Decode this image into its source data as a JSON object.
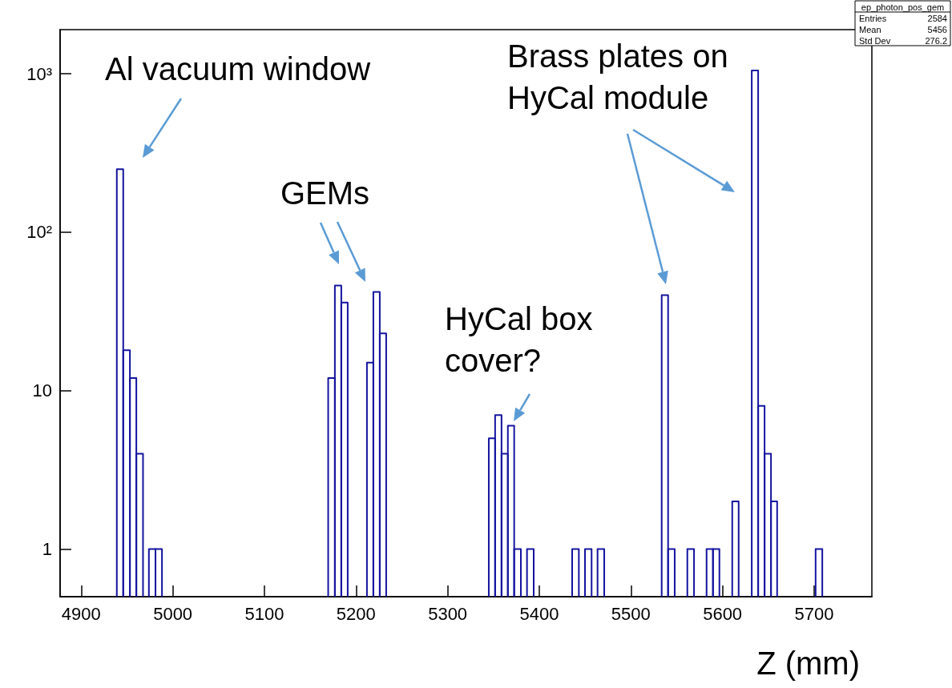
{
  "chart_data": {
    "type": "histogram",
    "xlabel": "Z (mm)",
    "annotations": [
      "Al vacuum window",
      "GEMs",
      "HyCal box cover?",
      "Brass plates on HyCal module",
      "ep_photon_pos_gem",
      "Entries",
      "2584",
      "Mean",
      "5456",
      "Std Dev",
      "276.2"
    ],
    "bins": [
      4938.9,
      4945.9,
      4953.2,
      4960.2,
      4967.5,
      4973.9,
      4981.1,
      4988.2,
      5169.6,
      5176.9,
      5183.9,
      5190.9,
      5211.9,
      5218.9,
      5225.9,
      5232.9,
      5344.9,
      5351.8,
      5358.8,
      5365.7,
      5372.6,
      5379.9,
      5386.6,
      5393.9,
      5435.9,
      5443.2,
      5449.9,
      5457.1,
      5463.6,
      5470.9,
      5533.6,
      5540.6,
      5547.8,
      5561.6,
      5568.9,
      5582.6,
      5589.6,
      5596.6,
      5610.6,
      5617.6,
      5631.9,
      5638.9,
      5645.9,
      5652.9,
      5659.6,
      5701.6,
      5708.9
    ],
    "values": [
      250,
      18,
      12,
      4,
      null,
      1,
      1,
      null,
      12,
      46,
      36,
      null,
      15,
      42,
      23,
      null,
      5,
      7,
      4,
      6,
      1,
      null,
      1,
      null,
      1,
      null,
      1,
      null,
      1,
      null,
      40,
      1,
      null,
      1,
      null,
      1,
      1,
      null,
      2,
      null,
      1050,
      8,
      4,
      2,
      null,
      1
    ],
    "color": "#1414a0",
    "xlim": [
      4877,
      5763
    ],
    "xticks": [
      4900,
      5000,
      5100,
      5200,
      5300,
      5400,
      5500,
      5600,
      5700
    ],
    "ylim": [
      0.5,
      1900
    ],
    "yticks": [
      1,
      10,
      {
        "value": 100,
        "label": "10²"
      },
      {
        "value": 1000,
        "label": "10³"
      }
    ],
    "log": "y"
  }
}
